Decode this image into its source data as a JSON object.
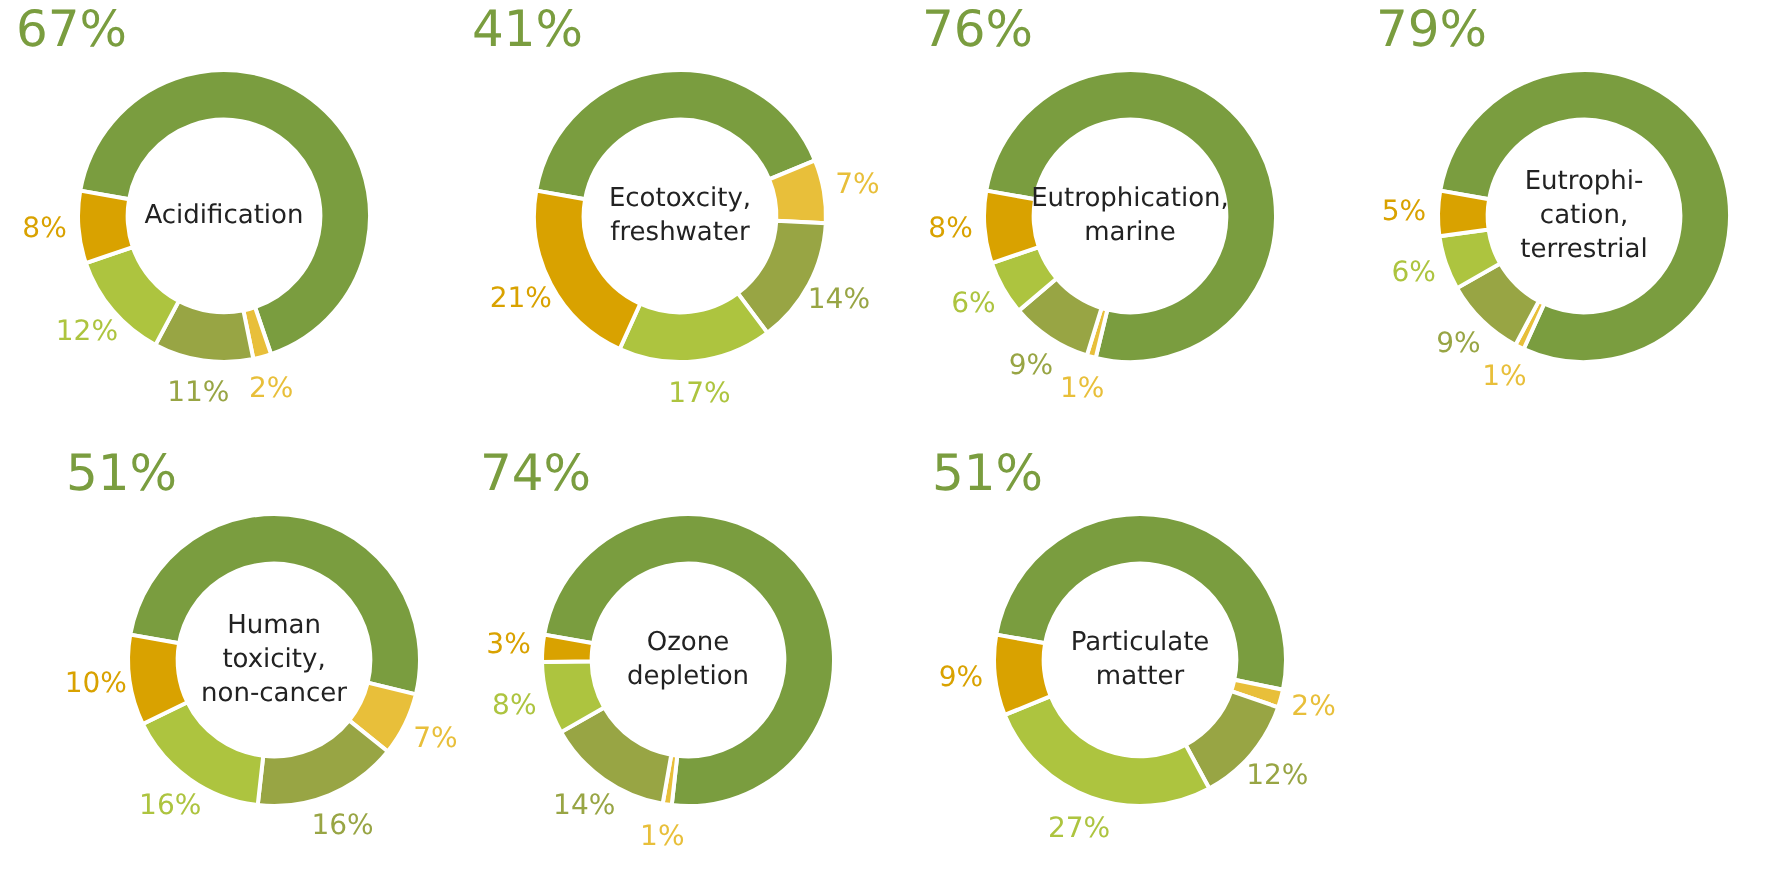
{
  "chart_data": [
    {
      "type": "donut",
      "title": "Acidification",
      "categories": [
        null,
        null,
        null,
        null,
        null
      ],
      "values": [
        67,
        2,
        11,
        12,
        8
      ],
      "value_labels": [
        "67%",
        "2%",
        "11%",
        "12%",
        "8%"
      ],
      "colors": [
        "#7a9d3f",
        "#e8bf3a",
        "#98a544",
        "#adc43f",
        "#d9a200"
      ],
      "data_labels": true,
      "legend": false
    },
    {
      "type": "donut",
      "title": "Ecotoxcity,\nfreshwater",
      "categories": [
        null,
        null,
        null,
        null,
        null
      ],
      "values": [
        41,
        7,
        14,
        17,
        21
      ],
      "value_labels": [
        "41%",
        "7%",
        "14%",
        "17%",
        "21%"
      ],
      "colors": [
        "#7a9d3f",
        "#e8bf3a",
        "#98a544",
        "#adc43f",
        "#d9a200"
      ],
      "data_labels": true,
      "legend": false
    },
    {
      "type": "donut",
      "title": "Eutrophication,\nmarine",
      "categories": [
        null,
        null,
        null,
        null,
        null
      ],
      "values": [
        76,
        1,
        9,
        6,
        8
      ],
      "value_labels": [
        "76%",
        "1%",
        "9%",
        "6%",
        "8%"
      ],
      "colors": [
        "#7a9d3f",
        "#e8bf3a",
        "#98a544",
        "#adc43f",
        "#d9a200"
      ],
      "data_labels": true,
      "legend": false
    },
    {
      "type": "donut",
      "title": "Eutrophi-\ncation,\nterrestrial",
      "categories": [
        null,
        null,
        null,
        null,
        null
      ],
      "values": [
        79,
        1,
        9,
        6,
        5
      ],
      "value_labels": [
        "79%",
        "1%",
        "9%",
        "6%",
        "5%"
      ],
      "colors": [
        "#7a9d3f",
        "#e8bf3a",
        "#98a544",
        "#adc43f",
        "#d9a200"
      ],
      "data_labels": true,
      "legend": false
    },
    {
      "type": "donut",
      "title": "Human\ntoxicity,\nnon-cancer",
      "categories": [
        null,
        null,
        null,
        null,
        null
      ],
      "values": [
        51,
        7,
        16,
        16,
        10
      ],
      "value_labels": [
        "51%",
        "7%",
        "16%",
        "16%",
        "10%"
      ],
      "colors": [
        "#7a9d3f",
        "#e8bf3a",
        "#98a544",
        "#adc43f",
        "#d9a200"
      ],
      "data_labels": true,
      "legend": false
    },
    {
      "type": "donut",
      "title": "Ozone\ndepletion",
      "categories": [
        null,
        null,
        null,
        null,
        null
      ],
      "values": [
        74,
        1,
        14,
        8,
        3
      ],
      "value_labels": [
        "74%",
        "1%",
        "14%",
        "8%",
        "3%"
      ],
      "colors": [
        "#7a9d3f",
        "#e8bf3a",
        "#98a544",
        "#adc43f",
        "#d9a200"
      ],
      "data_labels": true,
      "legend": false
    },
    {
      "type": "donut",
      "title": "Particulate\nmatter",
      "categories": [
        null,
        null,
        null,
        null,
        null
      ],
      "values": [
        51,
        2,
        12,
        27,
        9
      ],
      "value_labels": [
        "51%",
        "2%",
        "12%",
        "27%",
        "9%"
      ],
      "colors": [
        "#7a9d3f",
        "#e8bf3a",
        "#98a544",
        "#adc43f",
        "#d9a200"
      ],
      "data_labels": true,
      "legend": false
    }
  ]
}
